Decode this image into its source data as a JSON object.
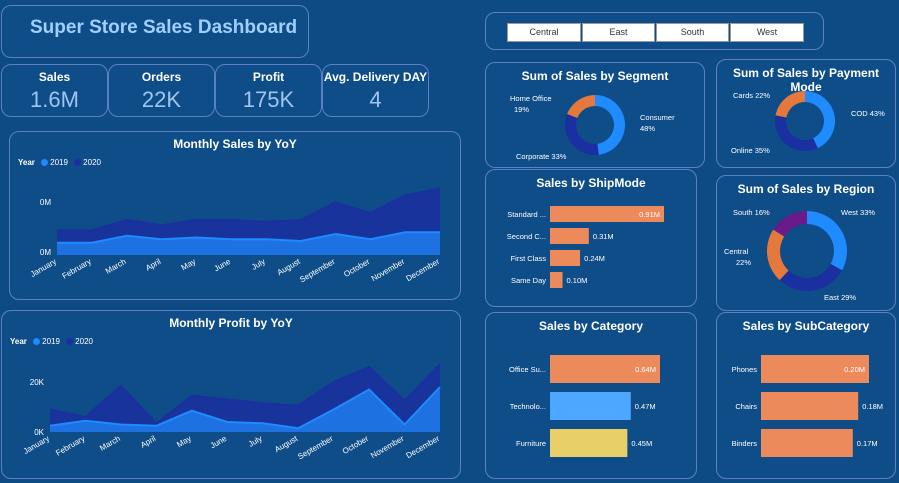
{
  "dashboard": {
    "title": "Super Store Sales Dashboard"
  },
  "slicer": {
    "regions": [
      "Central",
      "East",
      "South",
      "West"
    ]
  },
  "kpis": [
    {
      "label": "Sales",
      "value": "1.6M"
    },
    {
      "label": "Orders",
      "value": "22K"
    },
    {
      "label": "Profit",
      "value": "175K"
    },
    {
      "label": "Avg. Delivery DAY",
      "value": "4"
    }
  ],
  "colors": {
    "c2019": "#1f8bff",
    "c2020": "#1a2fa0",
    "bar": "#ec8a5c",
    "bar_blue": "#4da6ff",
    "bar_yellow": "#e8cf68",
    "purple": "#6a1b8a",
    "orange": "#e4783d"
  },
  "monthly_sales": {
    "title": "Monthly Sales by YoY",
    "legend_label": "Year",
    "series_names": [
      "2019",
      "2020"
    ],
    "ytick_labels": [
      "0M",
      "0M"
    ],
    "months": [
      "January",
      "February",
      "March",
      "April",
      "May",
      "June",
      "July",
      "August",
      "September",
      "October",
      "November",
      "December"
    ]
  },
  "monthly_profit": {
    "title": "Monthly Profit by YoY",
    "legend_label": "Year",
    "series_names": [
      "2019",
      "2020"
    ],
    "ytick_labels": [
      "20K",
      "0K"
    ],
    "months": [
      "January",
      "February",
      "March",
      "April",
      "May",
      "June",
      "July",
      "August",
      "September",
      "October",
      "November",
      "December"
    ]
  },
  "segment": {
    "title": "Sum of Sales by Segment",
    "labels": [
      "Home Office",
      "19%",
      "Consumer",
      "48%",
      "Corporate 33%"
    ]
  },
  "payment": {
    "title": "Sum of Sales by Payment Mode",
    "labels": [
      "Cards 22%",
      "COD 43%",
      "Online 35%"
    ]
  },
  "shipmode": {
    "title": "Sales by ShipMode",
    "categories": [
      "Standard ...",
      "Second C...",
      "First Class",
      "Same Day"
    ],
    "value_labels": [
      "0.91M",
      "0.31M",
      "0.24M",
      "0.10M"
    ]
  },
  "region": {
    "title": "Sum of Sales by Region",
    "labels": [
      "South 16%",
      "West 33%",
      "Central",
      "22%",
      "East 29%"
    ]
  },
  "category": {
    "title": "Sales by Category",
    "categories": [
      "Office Su...",
      "Technolo...",
      "Furniture"
    ],
    "value_labels": [
      "0.64M",
      "0.47M",
      "0.45M"
    ]
  },
  "subcategory": {
    "title": "Sales by SubCategory",
    "categories": [
      "Phones",
      "Chairs",
      "Binders"
    ],
    "value_labels": [
      "0.20M",
      "0.18M",
      "0.17M"
    ]
  },
  "chart_data": [
    {
      "type": "area",
      "title": "Monthly Sales by YoY",
      "x": [
        "January",
        "February",
        "March",
        "April",
        "May",
        "June",
        "July",
        "August",
        "September",
        "October",
        "November",
        "December"
      ],
      "series": [
        {
          "name": "2019",
          "values": [
            0.07,
            0.07,
            0.11,
            0.09,
            0.1,
            0.09,
            0.09,
            0.08,
            0.12,
            0.09,
            0.13,
            0.13
          ]
        },
        {
          "name": "2020",
          "values": [
            0.14,
            0.14,
            0.2,
            0.17,
            0.2,
            0.2,
            0.19,
            0.2,
            0.3,
            0.24,
            0.34,
            0.38
          ]
        }
      ],
      "ytick_labels": [
        "0M",
        "0M"
      ]
    },
    {
      "type": "area",
      "title": "Monthly Profit by YoY",
      "x": [
        "January",
        "February",
        "March",
        "April",
        "May",
        "June",
        "July",
        "August",
        "September",
        "October",
        "November",
        "December"
      ],
      "series": [
        {
          "name": "2019",
          "values": [
            2500,
            4500,
            3000,
            2500,
            8500,
            4000,
            3500,
            1500,
            9000,
            17000,
            3000,
            18000
          ]
        },
        {
          "name": "2020",
          "values": [
            9000,
            6000,
            18500,
            3500,
            14500,
            13000,
            11500,
            10500,
            20000,
            26000,
            12500,
            27000
          ]
        }
      ],
      "ytick_labels": [
        "20K",
        "0K"
      ]
    },
    {
      "type": "pie",
      "title": "Sum of Sales by Segment",
      "categories": [
        "Consumer",
        "Corporate",
        "Home Office"
      ],
      "values": [
        48,
        33,
        19
      ]
    },
    {
      "type": "pie",
      "title": "Sum of Sales by Payment Mode",
      "categories": [
        "COD",
        "Online",
        "Cards"
      ],
      "values": [
        43,
        35,
        22
      ]
    },
    {
      "type": "bar",
      "title": "Sales by ShipMode",
      "categories": [
        "Standard ...",
        "Second C...",
        "First Class",
        "Same Day"
      ],
      "values": [
        0.91,
        0.31,
        0.24,
        0.1
      ]
    },
    {
      "type": "pie",
      "title": "Sum of Sales by Region",
      "categories": [
        "West",
        "East",
        "Central",
        "South"
      ],
      "values": [
        33,
        29,
        22,
        16
      ]
    },
    {
      "type": "bar",
      "title": "Sales by Category",
      "categories": [
        "Office Su...",
        "Technolo...",
        "Furniture"
      ],
      "values": [
        0.64,
        0.47,
        0.45
      ]
    },
    {
      "type": "bar",
      "title": "Sales by SubCategory",
      "categories": [
        "Phones",
        "Chairs",
        "Binders"
      ],
      "values": [
        0.2,
        0.18,
        0.17
      ]
    }
  ]
}
